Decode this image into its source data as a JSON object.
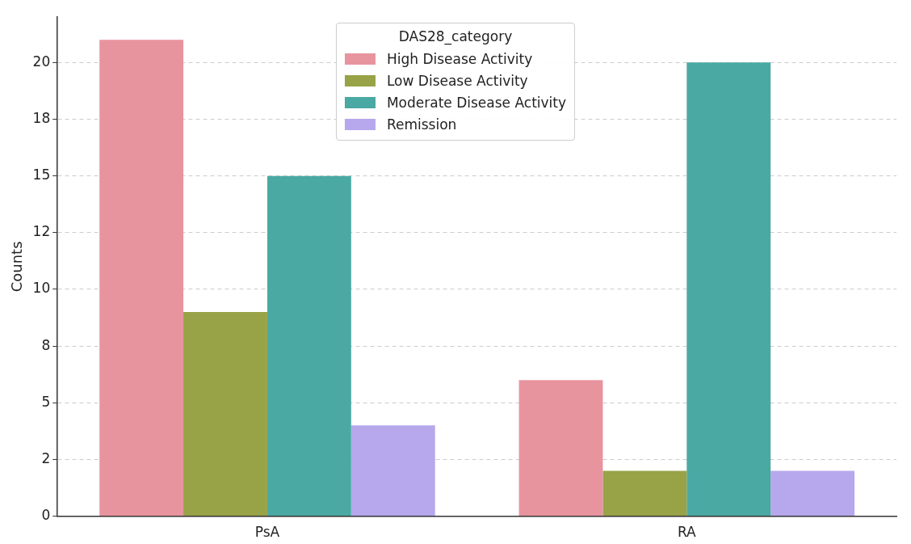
{
  "chart_data": {
    "type": "bar",
    "ylabel": "Counts",
    "legend_title": "DAS28_category",
    "categories": [
      "PsA",
      "RA"
    ],
    "series": [
      {
        "name": "High Disease Activity",
        "color": "#e8949f",
        "values": [
          21,
          6
        ]
      },
      {
        "name": "Low Disease Activity",
        "color": "#98a247",
        "values": [
          9,
          2
        ]
      },
      {
        "name": "Moderate Disease Activity",
        "color": "#4aa9a3",
        "values": [
          15,
          20
        ]
      },
      {
        "name": "Remission",
        "color": "#b7a7ec",
        "values": [
          4,
          2
        ]
      }
    ],
    "ylim": [
      0,
      22
    ],
    "yticks": [
      0,
      {
        "value": 2.5,
        "label": "2"
      },
      {
        "value": 5,
        "label": "5"
      },
      {
        "value": 7.5,
        "label": "8"
      },
      {
        "value": 10,
        "label": "10"
      },
      {
        "value": 12.5,
        "label": "12"
      },
      {
        "value": 15,
        "label": "15"
      },
      {
        "value": 17.5,
        "label": "18"
      },
      {
        "value": 20,
        "label": "20"
      }
    ],
    "grid": "y",
    "legend": "top"
  }
}
